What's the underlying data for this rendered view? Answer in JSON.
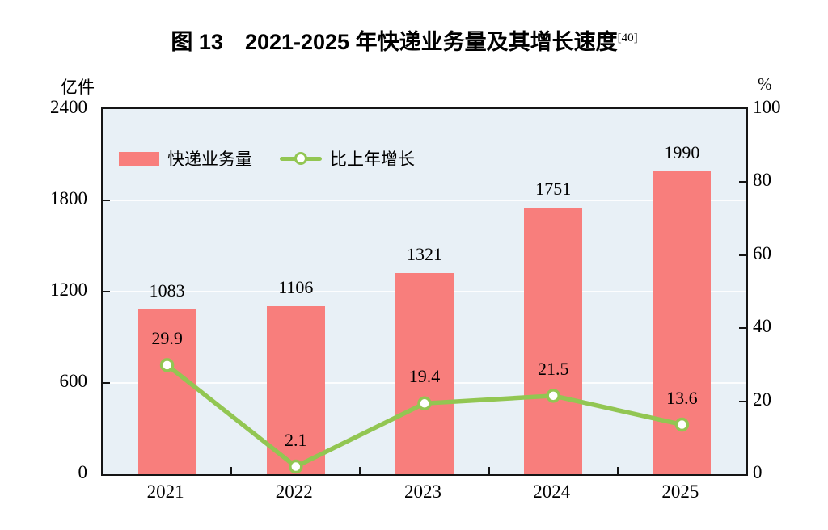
{
  "title": {
    "text": "图 13　2021-2025 年快递业务量及其增长速度",
    "superscript": "[40]"
  },
  "axes": {
    "left_unit": "亿件",
    "right_unit": "%",
    "left_ticks": [
      2400,
      1800,
      1200,
      600,
      0
    ],
    "right_ticks": [
      100,
      80,
      60,
      40,
      20,
      0
    ],
    "left_max": 2400,
    "right_max": 100
  },
  "legend": [
    {
      "label": "快递业务量",
      "type": "bar"
    },
    {
      "label": "比上年增长",
      "type": "line"
    }
  ],
  "colors": {
    "bar": "#F87E7C",
    "line": "#92C652",
    "marker_fill": "#FFFFFF",
    "plot_bg": "#E8F0F6",
    "grid": "#FFFFFF",
    "axis": "#151515",
    "text": "#000000"
  },
  "chart_data": {
    "type": "bar",
    "categories": [
      "2021",
      "2022",
      "2023",
      "2024",
      "2025"
    ],
    "series": [
      {
        "name": "快递业务量",
        "type": "bar",
        "axis": "left",
        "values": [
          1083,
          1106,
          1321,
          1751,
          1990
        ]
      },
      {
        "name": "比上年增长",
        "type": "line",
        "axis": "right",
        "values": [
          29.9,
          2.1,
          19.4,
          21.5,
          13.6
        ]
      }
    ],
    "title": "图 13　2021-2025 年快递业务量及其增长速度[40]",
    "xlabel": "",
    "ylabel_left": "亿件",
    "ylabel_right": "%",
    "left_axis_range": [
      0,
      2400
    ],
    "right_axis_range": [
      0,
      100
    ],
    "grid": true,
    "legend_position": "top-left-inside"
  }
}
